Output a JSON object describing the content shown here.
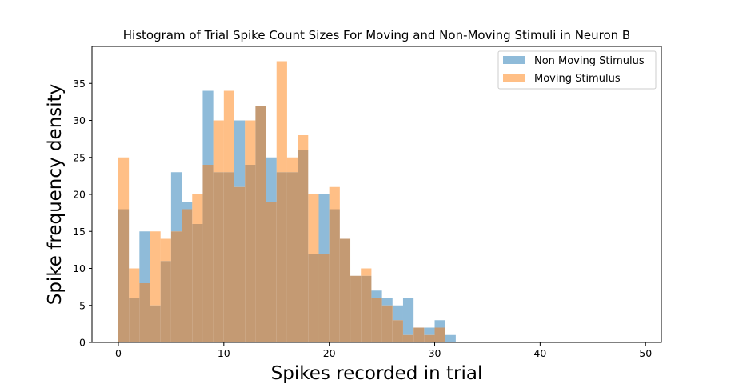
{
  "chart_data": {
    "type": "bar",
    "title": "Histogram of Trial Spike Count Sizes For Moving and Non-Moving Stimuli in Neuron B",
    "xlabel": "Spikes recorded in trial",
    "ylabel": "Spike frequency density",
    "xlim": [
      -2.5,
      51.5
    ],
    "ylim": [
      0,
      40
    ],
    "xticks": [
      0,
      10,
      20,
      30,
      40,
      50
    ],
    "yticks": [
      0,
      5,
      10,
      15,
      20,
      25,
      30,
      35
    ],
    "bin_width": 1,
    "bin_starts": [
      0,
      1,
      2,
      3,
      4,
      5,
      6,
      7,
      8,
      9,
      10,
      11,
      12,
      13,
      14,
      15,
      16,
      17,
      18,
      19,
      20,
      21,
      22,
      23,
      24,
      25,
      26,
      27,
      28,
      29,
      30,
      31
    ],
    "legend_position": "upper right",
    "overlap_color": "#c49a73",
    "series": [
      {
        "name": "Non Moving Stimulus",
        "color": "#1f77b4",
        "alpha": 0.5,
        "values": [
          18,
          6,
          15,
          5,
          11,
          23,
          19,
          16,
          34,
          23,
          23,
          30,
          24,
          32,
          25,
          23,
          23,
          26,
          12,
          20,
          18,
          14,
          9,
          9,
          7,
          6,
          5,
          6,
          2,
          2,
          3,
          1
        ]
      },
      {
        "name": "Moving Stimulus",
        "color": "#ff7f0e",
        "alpha": 0.5,
        "values": [
          25,
          10,
          8,
          15,
          14,
          15,
          18,
          20,
          24,
          30,
          34,
          21,
          30,
          32,
          19,
          38,
          25,
          28,
          20,
          12,
          21,
          14,
          9,
          10,
          6,
          5,
          3,
          1,
          2,
          1,
          2,
          0
        ]
      }
    ]
  }
}
